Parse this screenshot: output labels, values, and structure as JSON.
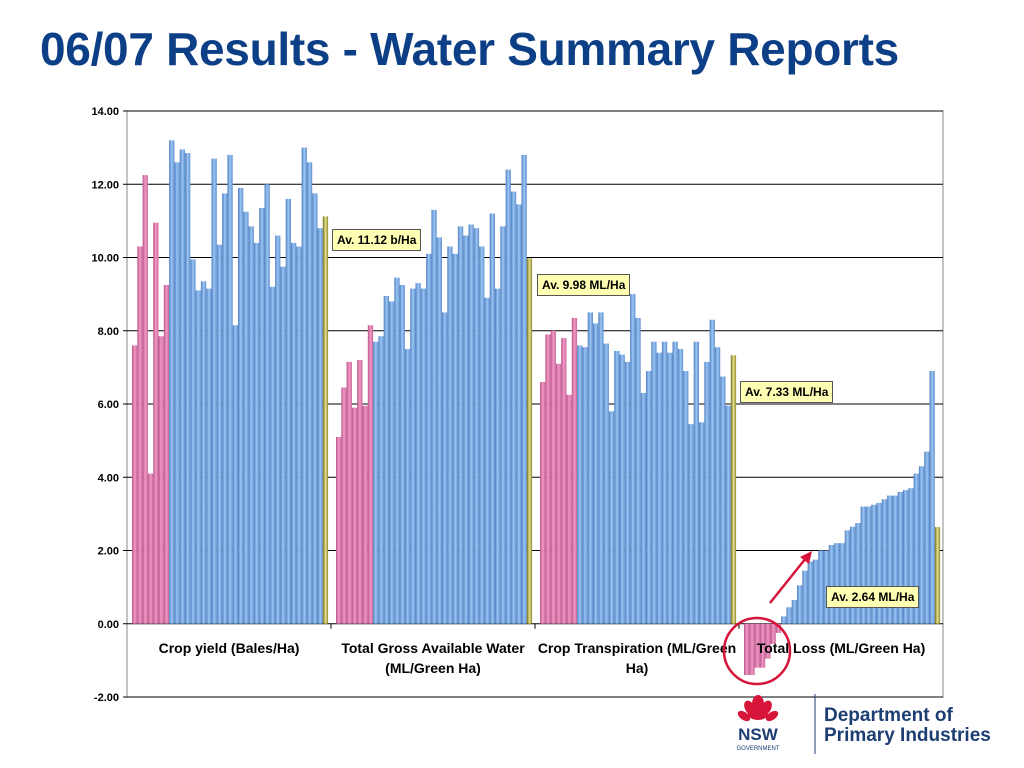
{
  "title": "06/07 Results - Water Summary Reports",
  "chart_data": {
    "type": "bar",
    "ylim": [
      -2,
      14
    ],
    "yticks": [
      "-2.00",
      "0.00",
      "2.00",
      "4.00",
      "6.00",
      "8.00",
      "10.00",
      "12.00",
      "14.00"
    ],
    "grid": true,
    "categories": [
      "Crop yield (Bales/Ha)",
      "Total Gross Available Water (ML/Green Ha)",
      "Crop Transpiration (ML/Green Ha)",
      "Total Loss (ML/Green Ha)"
    ],
    "colors": {
      "pink": "#e57fb2",
      "blue": "#7fb0e8",
      "average": "#d9d36a"
    },
    "groups": [
      {
        "pink": [
          7.6,
          10.3,
          12.25,
          4.1,
          10.95,
          7.85,
          9.25
        ],
        "blue": [
          13.2,
          12.6,
          12.95,
          12.85,
          9.95,
          9.1,
          9.35,
          9.15,
          12.7,
          10.35,
          11.75,
          12.8,
          8.15,
          11.9,
          11.25,
          10.85,
          10.4,
          11.35,
          12.0,
          9.2,
          10.6,
          9.75,
          11.6,
          10.4,
          10.3,
          13.0,
          12.6,
          11.75,
          10.8
        ],
        "average": 11.12,
        "average_label": "Av. 11.12 b/Ha"
      },
      {
        "pink": [
          5.1,
          6.45,
          7.15,
          5.9,
          7.2,
          5.95,
          8.15
        ],
        "blue": [
          7.7,
          7.85,
          8.95,
          8.8,
          9.45,
          9.25,
          7.5,
          9.15,
          9.3,
          9.15,
          10.1,
          11.3,
          10.55,
          8.5,
          10.3,
          10.1,
          10.85,
          10.6,
          10.9,
          10.8,
          10.3,
          8.9,
          11.2,
          9.15,
          10.85,
          12.4,
          11.8,
          11.45,
          12.8
        ],
        "average": 9.98,
        "average_label": "Av. 9.98 ML/Ha"
      },
      {
        "pink": [
          6.6,
          7.9,
          8.0,
          7.1,
          7.8,
          6.25,
          8.35
        ],
        "blue": [
          7.6,
          7.55,
          8.5,
          8.2,
          8.5,
          7.65,
          5.8,
          7.45,
          7.35,
          7.15,
          9.0,
          8.35,
          6.3,
          6.9,
          7.7,
          7.4,
          7.7,
          7.4,
          7.7,
          7.5,
          6.9,
          5.45,
          7.7,
          5.5,
          7.15,
          8.3,
          7.55,
          6.75,
          5.95
        ],
        "average": 7.33,
        "average_label": "Av. 7.33 ML/Ha"
      },
      {
        "pink": [
          -1.4,
          -1.4,
          -1.2,
          -1.2,
          -0.95,
          -0.55,
          -0.25
        ],
        "blue": [
          0.2,
          0.45,
          0.65,
          1.05,
          1.45,
          1.7,
          1.75,
          2.0,
          2.0,
          2.15,
          2.2,
          2.2,
          2.55,
          2.65,
          2.75,
          3.2,
          3.2,
          3.25,
          3.3,
          3.4,
          3.5,
          3.5,
          3.6,
          3.65,
          3.7,
          4.1,
          4.3,
          4.7,
          6.9
        ],
        "average": 2.64,
        "average_label": "Av. 2.64 ML/Ha"
      }
    ]
  },
  "logo": {
    "brand": "NSW",
    "sub": "GOVERNMENT",
    "dept_line1": "Department of",
    "dept_line2": "Primary Industries"
  }
}
